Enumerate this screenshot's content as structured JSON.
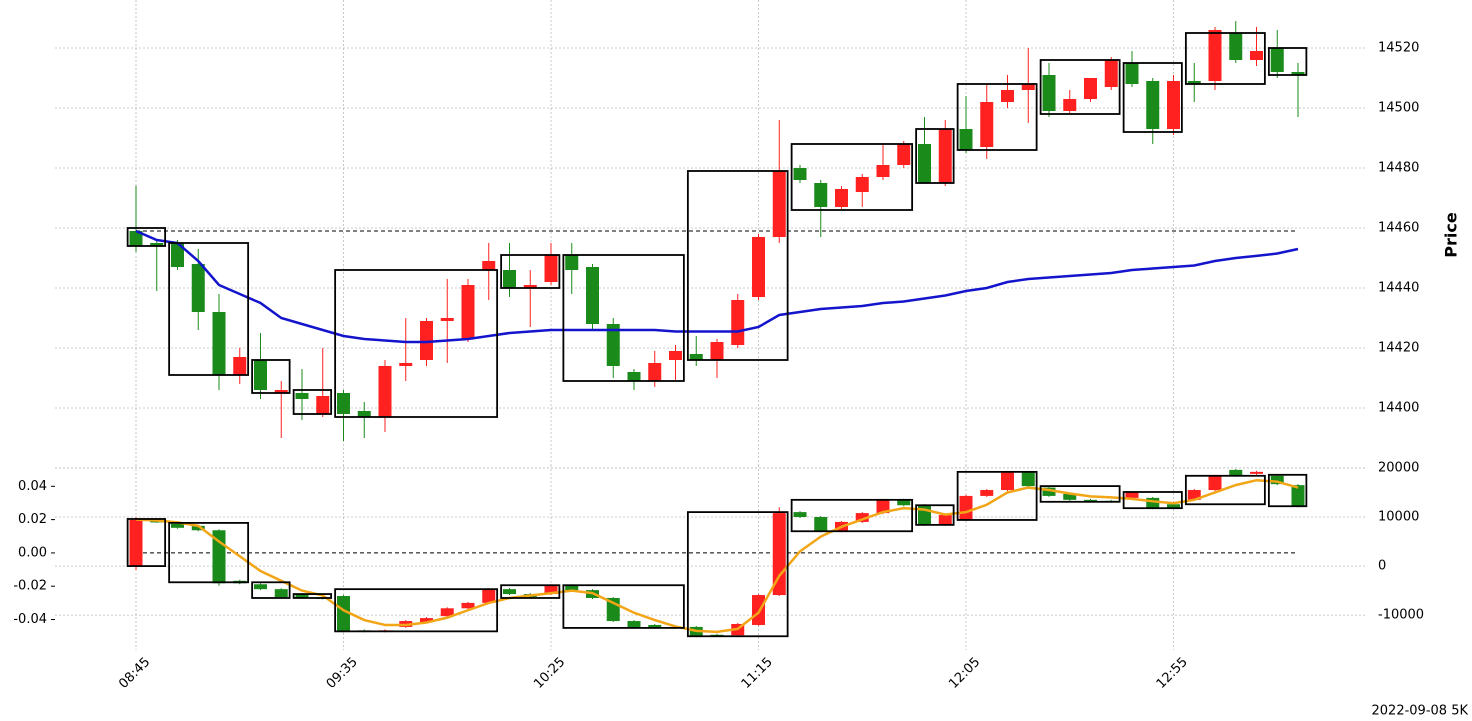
{
  "chart_data": {
    "type": "candlestick",
    "footer": "2022-09-08 5K",
    "up_color": "#ff2020",
    "down_color": "#1a8a1a",
    "grid": true,
    "categories": [
      "08:45",
      null,
      null,
      null,
      null,
      null,
      null,
      null,
      null,
      null,
      "09:35",
      null,
      null,
      null,
      null,
      null,
      null,
      null,
      null,
      null,
      "10:25",
      null,
      null,
      null,
      null,
      null,
      null,
      null,
      null,
      null,
      "11:15",
      null,
      null,
      null,
      null,
      null,
      null,
      null,
      null,
      null,
      "12:05",
      null,
      null,
      null,
      null,
      null,
      null,
      null,
      null,
      null,
      "12:55",
      null,
      null,
      null,
      null,
      null,
      null
    ],
    "panels": [
      {
        "ylabel": "Price",
        "ylim": [
          14381,
          14536
        ],
        "yticks": [
          14400,
          14420,
          14440,
          14460,
          14480,
          14500,
          14520
        ],
        "ref_line": 14459,
        "open": [
          14459,
          14455,
          14455,
          14448,
          14432,
          14411,
          14416,
          14405,
          14405,
          14398,
          14405,
          14399,
          14397,
          14414,
          14416,
          14429,
          14423,
          14446,
          14446,
          14440,
          14442,
          14451,
          14447,
          14428,
          14412,
          14409,
          14416,
          14418,
          14416,
          14421,
          14437,
          14457,
          14480,
          14475,
          14467,
          14472,
          14477,
          14481,
          14488,
          14475,
          14493,
          14487,
          14502,
          14506,
          14511,
          14499,
          14503,
          14507,
          14515,
          14509,
          14493,
          14509,
          14509,
          14525,
          14516,
          14520,
          14512
        ],
        "high": [
          14474,
          14456,
          14456,
          14453,
          14438,
          14420,
          14425,
          14409,
          14413,
          14420,
          14406,
          14402,
          14416,
          14430,
          14430,
          14443,
          14443,
          14455,
          14455,
          14446,
          14455,
          14455,
          14448,
          14430,
          14413,
          14419,
          14421,
          14424,
          14423,
          14438,
          14458,
          14496,
          14481,
          14476,
          14474,
          14478,
          14488,
          14489,
          14497,
          14496,
          14504,
          14508,
          14511,
          14520,
          14515,
          14506,
          14510,
          14517,
          14519,
          14510,
          14511,
          14515,
          14527,
          14529,
          14527,
          14526,
          14515
        ],
        "low": [
          14452,
          14439,
          14446,
          14426,
          14406,
          14408,
          14403,
          14390,
          14396,
          14397,
          14389,
          14390,
          14392,
          14409,
          14414,
          14415,
          14422,
          14436,
          14437,
          14427,
          14441,
          14438,
          14426,
          14410,
          14406,
          14407,
          14409,
          14414,
          14410,
          14420,
          14436,
          14455,
          14475,
          14457,
          14466,
          14467,
          14476,
          14480,
          14475,
          14474,
          14485,
          14483,
          14500,
          14495,
          14497,
          14498,
          14502,
          14506,
          14507,
          14488,
          14491,
          14502,
          14506,
          14515,
          14514,
          14510,
          14497
        ],
        "close": [
          14454,
          14454,
          14447,
          14432,
          14411,
          14417,
          14406,
          14406,
          14403,
          14404,
          14398,
          14397,
          14414,
          14415,
          14429,
          14430,
          14441,
          14449,
          14440,
          14441,
          14451,
          14446,
          14428,
          14414,
          14409,
          14415,
          14419,
          14416,
          14422,
          14436,
          14457,
          14479,
          14476,
          14467,
          14473,
          14477,
          14481,
          14488,
          14475,
          14493,
          14486,
          14502,
          14506,
          14508,
          14499,
          14503,
          14510,
          14516,
          14508,
          14493,
          14509,
          14508,
          14526,
          14516,
          14519,
          14512,
          14511
        ],
        "lines": [
          {
            "color": "#1414cc",
            "values": [
              14459,
              14456,
              14455,
              14449,
              14441,
              14438,
              14435,
              14430,
              14428,
              14426,
              14424,
              14423,
              14422.5,
              14422,
              14422,
              14422.5,
              14423,
              14424,
              14425,
              14425.5,
              14426,
              14426,
              14426,
              14426,
              14426,
              14426,
              14425.5,
              14425.5,
              14425.5,
              14425.5,
              14427,
              14431,
              14432,
              14433,
              14433.5,
              14434,
              14435,
              14435.5,
              14436.5,
              14437.5,
              14439,
              14440,
              14442,
              14443,
              14443.5,
              14444,
              14444.5,
              14445,
              14446,
              14446.5,
              14447,
              14447.5,
              14449,
              14450,
              14450.7,
              14451.5,
              14453
            ]
          }
        ],
        "boxes": [
          {
            "from": 0,
            "to": 1,
            "low": 14454,
            "high": 14460
          },
          {
            "from": 2,
            "to": 5,
            "low": 14411,
            "high": 14455
          },
          {
            "from": 6,
            "to": 7,
            "low": 14405,
            "high": 14416
          },
          {
            "from": 8,
            "to": 9,
            "low": 14398,
            "high": 14406
          },
          {
            "from": 10,
            "to": 17,
            "low": 14397,
            "high": 14446
          },
          {
            "from": 18,
            "to": 20,
            "low": 14440,
            "high": 14451
          },
          {
            "from": 21,
            "to": 26,
            "low": 14409,
            "high": 14451
          },
          {
            "from": 27,
            "to": 31,
            "low": 14416,
            "high": 14479
          },
          {
            "from": 32,
            "to": 37,
            "low": 14466,
            "high": 14488
          },
          {
            "from": 38,
            "to": 39,
            "low": 14475,
            "high": 14493
          },
          {
            "from": 40,
            "to": 43,
            "low": 14486,
            "high": 14508
          },
          {
            "from": 44,
            "to": 47,
            "low": 14498,
            "high": 14516
          },
          {
            "from": 48,
            "to": 50,
            "low": 14492,
            "high": 14515
          },
          {
            "from": 51,
            "to": 54,
            "low": 14508,
            "high": 14525
          },
          {
            "from": 55,
            "to": 56,
            "low": 14511,
            "high": 14520
          }
        ]
      },
      {
        "ylim": [
          -0.0583,
          0.0528
        ],
        "yticks": [
          -0.04,
          -0.02,
          {
            "value": 0,
            "label": "0.00"
          },
          0.02,
          0.04
        ],
        "ref_line": 0,
        "y2lim": [
          -17100,
          20600
        ],
        "y2ticks": [
          -10000,
          0,
          10000,
          20000
        ],
        "axis": "y2",
        "open": [
          0,
          9200,
          8600,
          8200,
          7300,
          -3000,
          -3700,
          -4700,
          -5700,
          -6400,
          -6100,
          -13100,
          -13300,
          -12400,
          -11400,
          -10200,
          -8600,
          -7500,
          -4700,
          -5700,
          -5700,
          -3900,
          -4900,
          -6500,
          -11200,
          -12000,
          -12400,
          -12400,
          -14000,
          -14100,
          -12000,
          -5900,
          11000,
          10000,
          7100,
          9000,
          10800,
          13500,
          12400,
          8400,
          9400,
          14300,
          15500,
          19200,
          16000,
          14700,
          13500,
          13300,
          13900,
          13900,
          12600,
          13500,
          15500,
          19600,
          18800,
          18400,
          16500
        ],
        "high": [
          10000,
          9400,
          8800,
          8300,
          7500,
          -2800,
          -3500,
          -4500,
          -5500,
          -6200,
          -5900,
          -12900,
          -12900,
          -11000,
          -10400,
          -8400,
          -7300,
          -4500,
          -4500,
          -5500,
          -3700,
          -3700,
          -4700,
          -6300,
          -11000,
          -11800,
          -12200,
          -12200,
          -13800,
          -11600,
          -5700,
          12000,
          11200,
          10200,
          9200,
          11000,
          13700,
          13700,
          12600,
          10600,
          14500,
          15700,
          19400,
          19400,
          16200,
          14900,
          13700,
          13500,
          15300,
          14100,
          12800,
          15700,
          18600,
          19800,
          19400,
          18600,
          16700
        ],
        "low": [
          -800,
          8800,
          7600,
          7100,
          -4000,
          -3700,
          -4900,
          -6500,
          -6700,
          -6800,
          -13500,
          -13500,
          -13500,
          -12600,
          -11600,
          -10400,
          -8800,
          -7700,
          -5900,
          -6500,
          -5900,
          -5100,
          -6700,
          -11400,
          -12800,
          -12800,
          -12700,
          -14500,
          -14400,
          -14300,
          -12200,
          -6100,
          9800,
          6900,
          6900,
          8800,
          10600,
          12200,
          8200,
          8200,
          9200,
          14100,
          15300,
          16100,
          14100,
          13300,
          13100,
          12900,
          13700,
          11600,
          11600,
          13300,
          15300,
          18200,
          18600,
          16500,
          12000
        ],
        "close": [
          9400,
          9000,
          7800,
          7300,
          -3500,
          -3500,
          -4700,
          -6300,
          -6500,
          -6600,
          -13300,
          -13300,
          -13100,
          -11200,
          -10600,
          -8600,
          -7500,
          -4700,
          -5700,
          -6300,
          -3900,
          -4900,
          -6500,
          -11200,
          -12600,
          -12600,
          -12500,
          -14300,
          -14200,
          -11800,
          -5900,
          10800,
          10000,
          7100,
          9000,
          10800,
          13500,
          12400,
          8400,
          10400,
          14300,
          15500,
          19200,
          16300,
          14300,
          13500,
          13300,
          13100,
          15100,
          11800,
          11800,
          15500,
          18400,
          18400,
          19200,
          16700,
          12200
        ],
        "lines": [
          {
            "color": "#f2a516",
            "values": [
              9500,
              9300,
              8900,
              8200,
              5000,
              2000,
              -1000,
              -3000,
              -5000,
              -6000,
              -9000,
              -11000,
              -12000,
              -12000,
              -11500,
              -10500,
              -9000,
              -7500,
              -6500,
              -6000,
              -5500,
              -5000,
              -5500,
              -7500,
              -9500,
              -11000,
              -12300,
              -13200,
              -13400,
              -12800,
              -9500,
              -2000,
              3000,
              6000,
              8000,
              9500,
              11000,
              11800,
              11500,
              10500,
              11000,
              12500,
              15000,
              16000,
              15500,
              14800,
              14200,
              14000,
              13700,
              13200,
              12800,
              13500,
              15000,
              16500,
              17500,
              17200,
              16000
            ]
          }
        ],
        "boxes": [
          {
            "from": 0,
            "to": 1,
            "low": 0,
            "high": 9600
          },
          {
            "from": 2,
            "to": 5,
            "low": -3300,
            "high": 8800
          },
          {
            "from": 6,
            "to": 7,
            "low": -6500,
            "high": -3300
          },
          {
            "from": 8,
            "to": 9,
            "low": -6500,
            "high": -5700
          },
          {
            "from": 10,
            "to": 17,
            "low": -13300,
            "high": -4700
          },
          {
            "from": 18,
            "to": 20,
            "low": -6500,
            "high": -3900
          },
          {
            "from": 21,
            "to": 26,
            "low": -12600,
            "high": -3900
          },
          {
            "from": 27,
            "to": 31,
            "low": -14300,
            "high": 11000
          },
          {
            "from": 32,
            "to": 37,
            "low": 7100,
            "high": 13500
          },
          {
            "from": 38,
            "to": 39,
            "low": 8400,
            "high": 12400
          },
          {
            "from": 40,
            "to": 43,
            "low": 9400,
            "high": 19200
          },
          {
            "from": 44,
            "to": 47,
            "low": 13100,
            "high": 16300
          },
          {
            "from": 48,
            "to": 50,
            "low": 11800,
            "high": 15100
          },
          {
            "from": 51,
            "to": 54,
            "low": 12600,
            "high": 18400
          },
          {
            "from": 55,
            "to": 56,
            "low": 12200,
            "high": 18600
          }
        ]
      }
    ]
  }
}
